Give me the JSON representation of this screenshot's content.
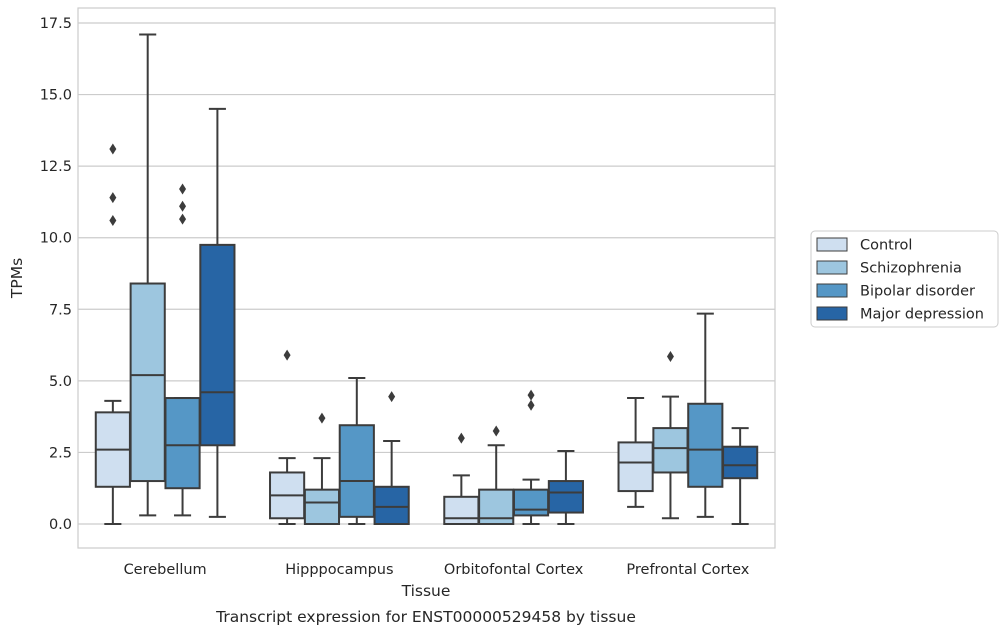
{
  "caption": "Transcript expression for ENST00000529458 by tissue",
  "chart_data": {
    "type": "box",
    "title": "",
    "xlabel": "Tissue",
    "ylabel": "TPMs",
    "ylim": [
      -0.8,
      17.8
    ],
    "yticks": [
      0.0,
      2.5,
      5.0,
      7.5,
      10.0,
      12.5,
      15.0,
      17.5
    ],
    "ytick_labels": [
      "0.0",
      "2.5",
      "5.0",
      "7.5",
      "10.0",
      "12.5",
      "15.0",
      "17.5"
    ],
    "grid": true,
    "legend_position": "right",
    "categories": [
      "Cerebellum",
      "Hipppocampus",
      "Orbitofontal Cortex",
      "Prefrontal Cortex"
    ],
    "series": [
      {
        "name": "Control",
        "color": "#cfdff0",
        "boxes": [
          {
            "whislo": 0.0,
            "q1": 1.3,
            "med": 2.6,
            "q3": 3.9,
            "whishi": 4.3,
            "fliers": [
              10.6,
              11.4,
              13.1
            ]
          },
          {
            "whislo": 0.0,
            "q1": 0.2,
            "med": 1.0,
            "q3": 1.8,
            "whishi": 2.3,
            "fliers": [
              5.9
            ]
          },
          {
            "whislo": 0.0,
            "q1": 0.0,
            "med": 0.2,
            "q3": 0.95,
            "whishi": 1.7,
            "fliers": [
              3.0
            ]
          },
          {
            "whislo": 0.6,
            "q1": 1.15,
            "med": 2.15,
            "q3": 2.85,
            "whishi": 4.4,
            "fliers": []
          }
        ]
      },
      {
        "name": "Schizophrenia",
        "color": "#9dc6df",
        "boxes": [
          {
            "whislo": 0.3,
            "q1": 1.5,
            "med": 5.2,
            "q3": 8.4,
            "whishi": 17.1,
            "fliers": []
          },
          {
            "whislo": 0.0,
            "q1": 0.0,
            "med": 0.75,
            "q3": 1.2,
            "whishi": 2.3,
            "fliers": [
              3.7
            ]
          },
          {
            "whislo": 0.0,
            "q1": 0.0,
            "med": 0.2,
            "q3": 1.2,
            "whishi": 2.75,
            "fliers": [
              3.25
            ]
          },
          {
            "whislo": 0.2,
            "q1": 1.8,
            "med": 2.65,
            "q3": 3.35,
            "whishi": 4.45,
            "fliers": [
              5.85
            ]
          }
        ]
      },
      {
        "name": "Bipolar disorder",
        "color": "#5597c6",
        "boxes": [
          {
            "whislo": 0.3,
            "q1": 1.25,
            "med": 2.75,
            "q3": 4.4,
            "whishi": 4.4,
            "fliers": [
              10.65,
              11.1,
              11.7
            ]
          },
          {
            "whislo": 0.0,
            "q1": 0.25,
            "med": 1.5,
            "q3": 3.45,
            "whishi": 5.1,
            "fliers": []
          },
          {
            "whislo": 0.0,
            "q1": 0.3,
            "med": 0.5,
            "q3": 1.2,
            "whishi": 1.55,
            "fliers": [
              4.15,
              4.5
            ]
          },
          {
            "whislo": 0.25,
            "q1": 1.3,
            "med": 2.6,
            "q3": 4.2,
            "whishi": 7.35,
            "fliers": []
          }
        ]
      },
      {
        "name": "Major depression",
        "color": "#2765a5",
        "boxes": [
          {
            "whislo": 0.25,
            "q1": 2.75,
            "med": 4.6,
            "q3": 9.75,
            "whishi": 14.5,
            "fliers": []
          },
          {
            "whislo": 0.0,
            "q1": 0.0,
            "med": 0.6,
            "q3": 1.3,
            "whishi": 2.9,
            "fliers": [
              4.45
            ]
          },
          {
            "whislo": 0.0,
            "q1": 0.4,
            "med": 1.1,
            "q3": 1.5,
            "whishi": 2.55,
            "fliers": []
          },
          {
            "whislo": 0.0,
            "q1": 1.6,
            "med": 2.05,
            "q3": 2.7,
            "whishi": 3.35,
            "fliers": []
          }
        ]
      }
    ]
  }
}
